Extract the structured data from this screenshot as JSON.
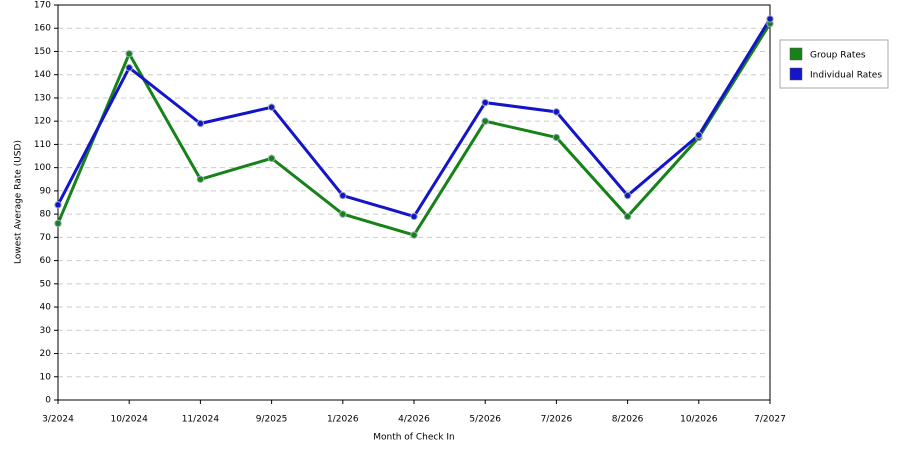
{
  "chart_data": {
    "type": "line",
    "x_label": "Month of Check In",
    "y_label": "Lowest Average Rate (USD)",
    "categories": [
      "3/2024",
      "10/2024",
      "11/2024",
      "9/2025",
      "1/2026",
      "4/2026",
      "5/2026",
      "7/2026",
      "8/2026",
      "10/2026",
      "7/2027"
    ],
    "series": [
      {
        "name": "Group Rates",
        "color": "#178217",
        "values": [
          76,
          149,
          95,
          104,
          80,
          71,
          120,
          113,
          79,
          113,
          162
        ]
      },
      {
        "name": "Individual Rates",
        "color": "#1414c8",
        "values": [
          84,
          143,
          119,
          126,
          88,
          79,
          128,
          124,
          88,
          114,
          164
        ]
      }
    ],
    "ylim": [
      0,
      170
    ],
    "yticks": [
      0,
      10,
      20,
      30,
      40,
      50,
      60,
      70,
      80,
      90,
      100,
      110,
      120,
      130,
      140,
      150,
      160,
      170
    ],
    "grid": true,
    "legend": "right"
  }
}
